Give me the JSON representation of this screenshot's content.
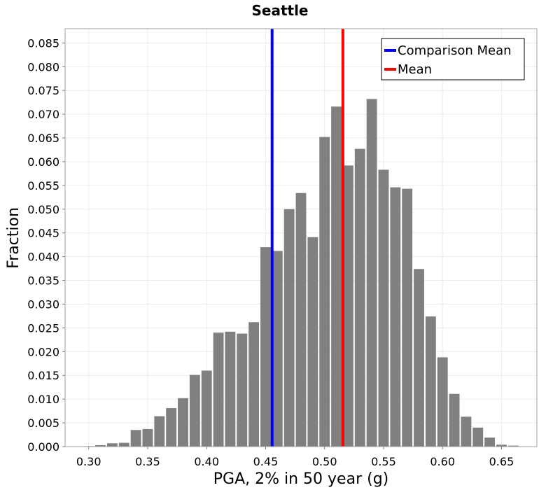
{
  "chart_data": {
    "type": "bar",
    "title": "Seattle",
    "xlabel": "PGA, 2% in 50 year (g)",
    "ylabel": "Fraction",
    "xlim": [
      0.28,
      0.68
    ],
    "ylim": [
      0.0,
      0.088
    ],
    "xticks": [
      "0.30",
      "0.35",
      "0.40",
      "0.45",
      "0.50",
      "0.55",
      "0.60",
      "0.65"
    ],
    "yticks": [
      "0.000",
      "0.005",
      "0.010",
      "0.015",
      "0.020",
      "0.025",
      "0.030",
      "0.035",
      "0.040",
      "0.045",
      "0.050",
      "0.055",
      "0.060",
      "0.065",
      "0.070",
      "0.075",
      "0.080",
      "0.085"
    ],
    "grid": true,
    "bin_width": 0.01,
    "bar_color": "#808080",
    "bins": [
      {
        "x": 0.3,
        "y": 0.0001
      },
      {
        "x": 0.31,
        "y": 0.0003
      },
      {
        "x": 0.32,
        "y": 0.0007
      },
      {
        "x": 0.33,
        "y": 0.0008
      },
      {
        "x": 0.34,
        "y": 0.0035
      },
      {
        "x": 0.35,
        "y": 0.0037
      },
      {
        "x": 0.36,
        "y": 0.0064
      },
      {
        "x": 0.37,
        "y": 0.0081
      },
      {
        "x": 0.38,
        "y": 0.0102
      },
      {
        "x": 0.39,
        "y": 0.0151
      },
      {
        "x": 0.4,
        "y": 0.016
      },
      {
        "x": 0.41,
        "y": 0.024
      },
      {
        "x": 0.42,
        "y": 0.0242
      },
      {
        "x": 0.43,
        "y": 0.0238
      },
      {
        "x": 0.44,
        "y": 0.0262
      },
      {
        "x": 0.45,
        "y": 0.042
      },
      {
        "x": 0.46,
        "y": 0.0412
      },
      {
        "x": 0.47,
        "y": 0.05
      },
      {
        "x": 0.48,
        "y": 0.0534
      },
      {
        "x": 0.49,
        "y": 0.0441
      },
      {
        "x": 0.5,
        "y": 0.0652
      },
      {
        "x": 0.51,
        "y": 0.0716
      },
      {
        "x": 0.52,
        "y": 0.0592
      },
      {
        "x": 0.53,
        "y": 0.0627
      },
      {
        "x": 0.54,
        "y": 0.0732
      },
      {
        "x": 0.55,
        "y": 0.0583
      },
      {
        "x": 0.56,
        "y": 0.0546
      },
      {
        "x": 0.57,
        "y": 0.0543
      },
      {
        "x": 0.58,
        "y": 0.0374
      },
      {
        "x": 0.59,
        "y": 0.0274
      },
      {
        "x": 0.6,
        "y": 0.0188
      },
      {
        "x": 0.61,
        "y": 0.0111
      },
      {
        "x": 0.62,
        "y": 0.0063
      },
      {
        "x": 0.63,
        "y": 0.004
      },
      {
        "x": 0.64,
        "y": 0.0019
      },
      {
        "x": 0.65,
        "y": 0.0004
      },
      {
        "x": 0.66,
        "y": 0.0002
      }
    ],
    "reference_lines": [
      {
        "name": "Comparison Mean",
        "x": 0.4555,
        "color": "#0000ff"
      },
      {
        "name": "Mean",
        "x": 0.5155,
        "color": "#ff0000"
      }
    ],
    "legend": {
      "position": "top-right",
      "entries": [
        {
          "label": "Comparison Mean",
          "color": "#0000ff"
        },
        {
          "label": "Mean",
          "color": "#ff0000"
        }
      ]
    }
  }
}
